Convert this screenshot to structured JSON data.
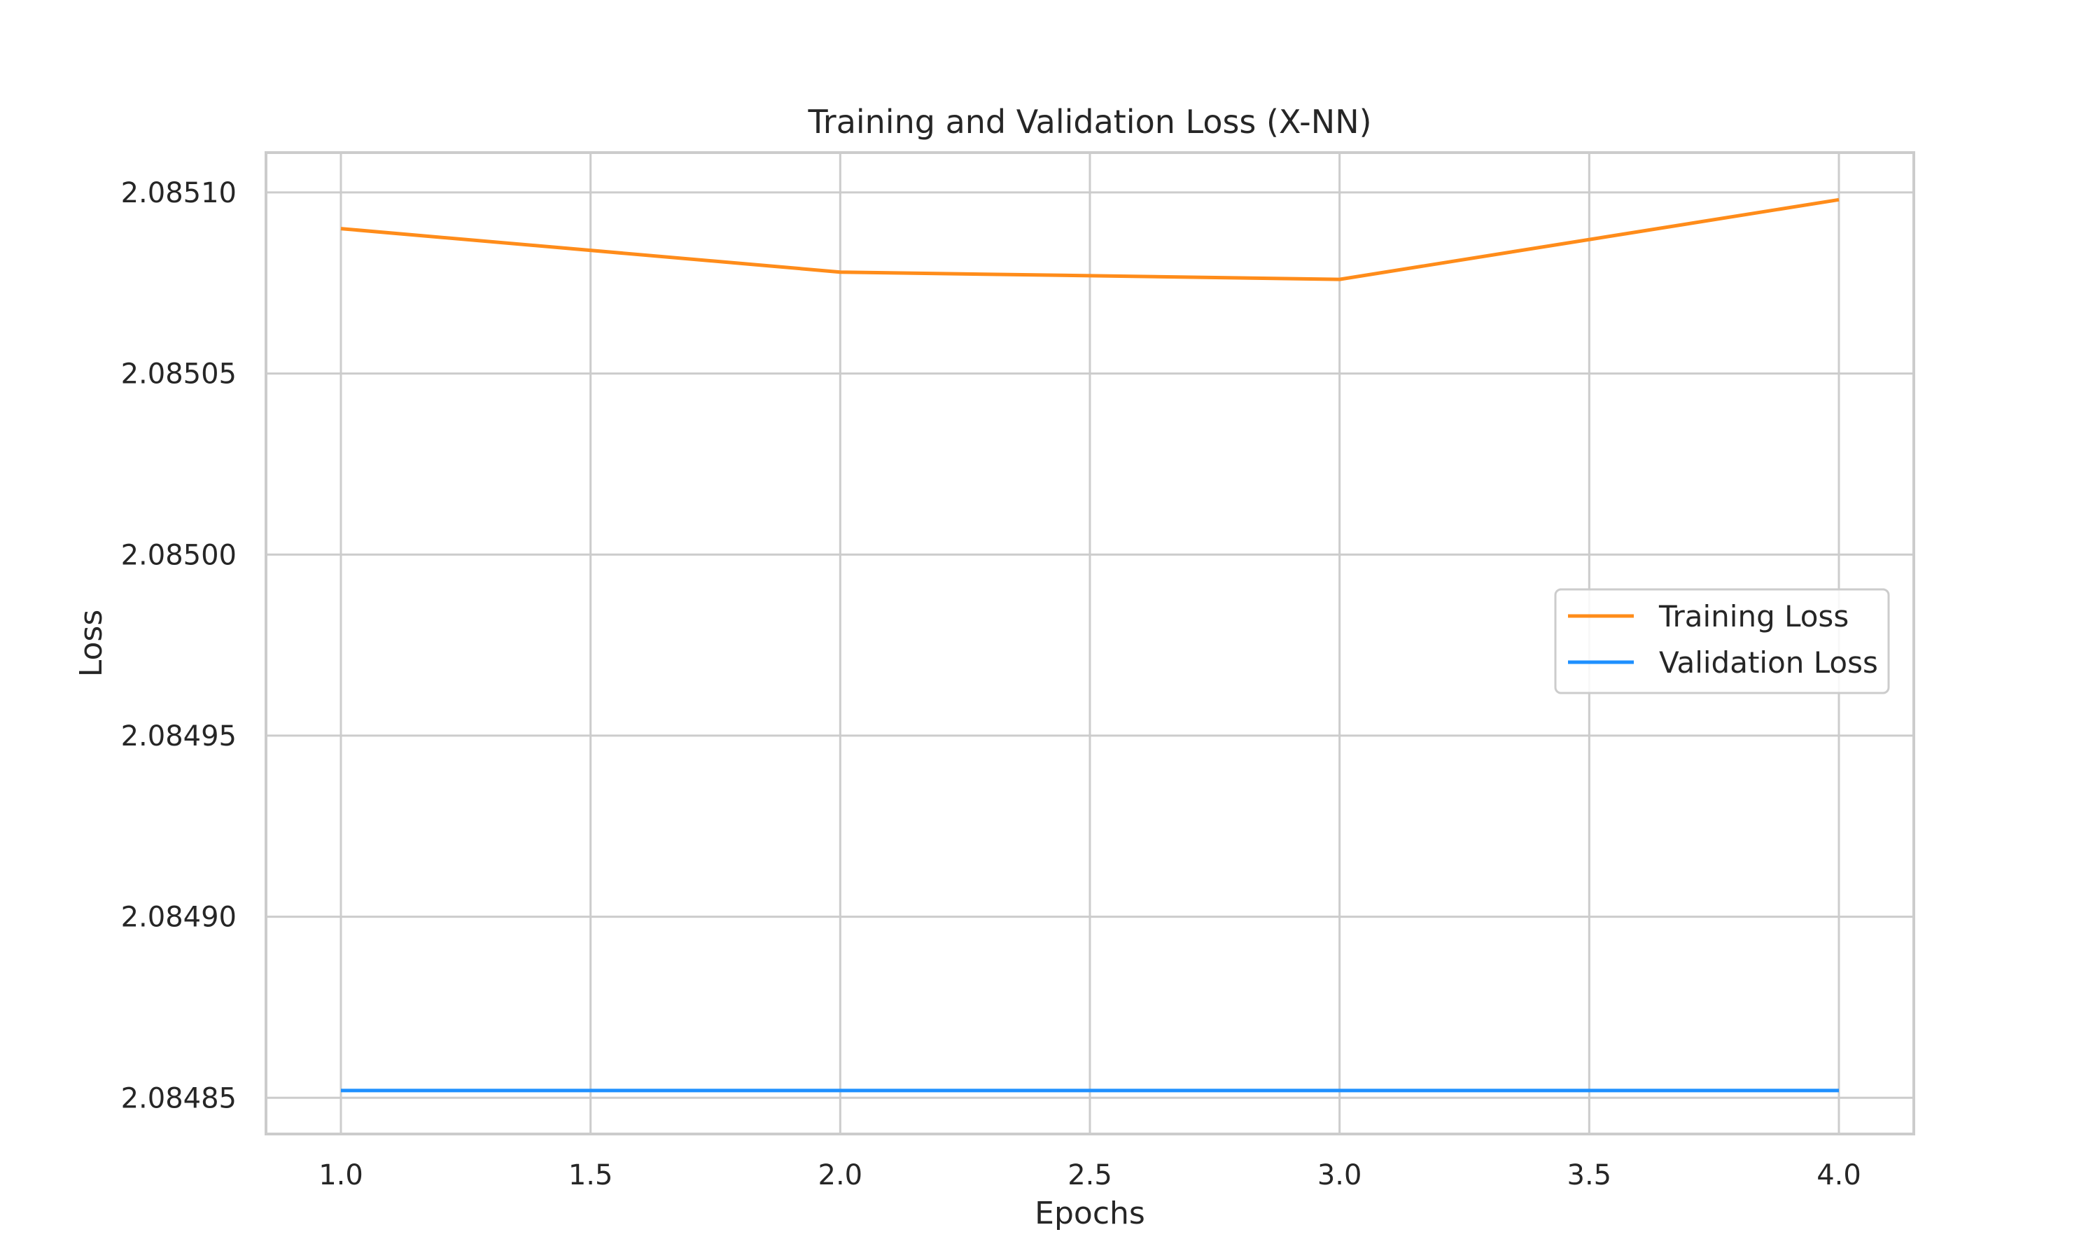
{
  "chart_data": {
    "type": "line",
    "title": "Training and Validation Loss (X-NN)",
    "xlabel": "Epochs",
    "ylabel": "Loss",
    "x": [
      1,
      2,
      3,
      4
    ],
    "xlim": [
      0.85,
      4.15
    ],
    "ylim": [
      2.08484,
      2.085111
    ],
    "xticks": [
      1.0,
      1.5,
      2.0,
      2.5,
      3.0,
      3.5,
      4.0
    ],
    "xtick_labels": [
      "1.0",
      "1.5",
      "2.0",
      "2.5",
      "3.0",
      "3.5",
      "4.0"
    ],
    "yticks": [
      2.08485,
      2.0849,
      2.08495,
      2.085,
      2.08505,
      2.0851
    ],
    "ytick_labels": [
      "2.08485",
      "2.08490",
      "2.08495",
      "2.08500",
      "2.08505",
      "2.08510"
    ],
    "grid": true,
    "legend_position": "center-right",
    "series": [
      {
        "name": "Training Loss",
        "color": "#ff8c1a",
        "values": [
          2.08509,
          2.085078,
          2.085076,
          2.085098
        ]
      },
      {
        "name": "Validation Loss",
        "color": "#1e90ff",
        "values": [
          2.084852,
          2.084852,
          2.084852,
          2.084852
        ]
      }
    ]
  }
}
